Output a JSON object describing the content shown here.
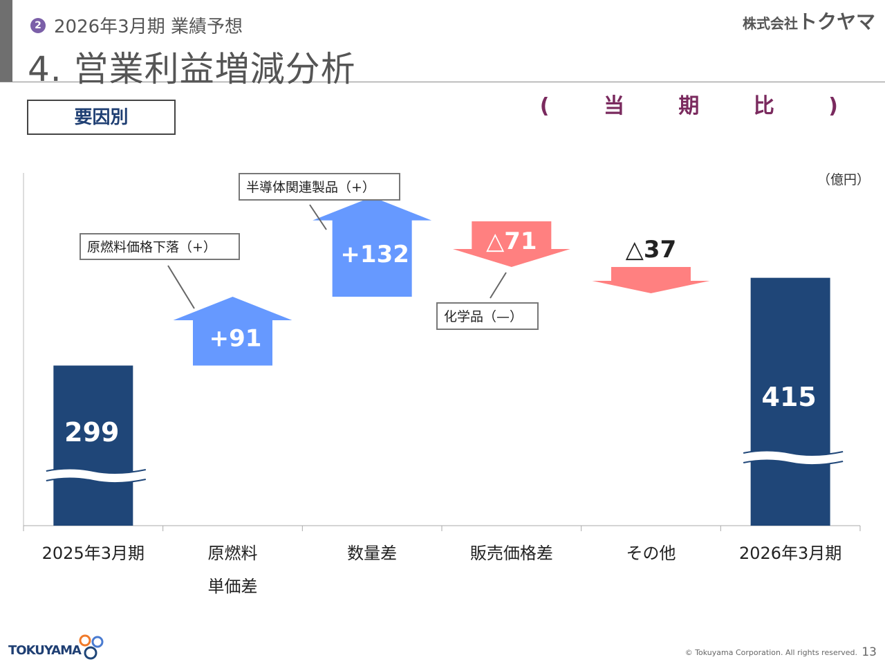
{
  "header": {
    "section_number": "2",
    "section_title": "2026年3月期 業績予想",
    "page_title": "4. 営業利益増減分析",
    "company_small": "株式会社",
    "company_big": "トクヤマ"
  },
  "factor_label": "要因別",
  "comparison_label": "( 当 期 比 )",
  "colors": {
    "bar": "#1f4678",
    "increase": "#6699ff",
    "decrease": "#ff8080",
    "title_accent": "#7a2a5e",
    "section_badge": "#7b5fa8"
  },
  "chart_data": {
    "type": "bar",
    "subtype": "waterfall",
    "unit": "（億円）",
    "categories": [
      "2025年3月期",
      "原燃料単価差",
      "数量差",
      "販売価格差",
      "その他",
      "2026年3月期"
    ],
    "category_lines": [
      [
        "2025年3月期"
      ],
      [
        "原燃料",
        "単価差"
      ],
      [
        "数量差"
      ],
      [
        "販売価格差"
      ],
      [
        "その他"
      ],
      [
        "2026年3月期"
      ]
    ],
    "values": [
      299,
      91,
      132,
      -71,
      -37,
      415
    ],
    "value_labels": [
      "299",
      "+91",
      "+132",
      "△71",
      "△37",
      "415"
    ],
    "kinds": [
      "total",
      "increase",
      "increase",
      "decrease",
      "decrease",
      "total"
    ],
    "axis_break": true,
    "callouts": [
      {
        "text": "原燃料価格下落（+）",
        "category": "原燃料単価差"
      },
      {
        "text": "半導体関連製品（+）",
        "category": "数量差"
      },
      {
        "text": "化学品（—）",
        "category": "販売価格差"
      }
    ]
  },
  "footer": {
    "logo_text": "TOKUYAMA",
    "copyright": "© Tokuyama Corporation. All rights reserved.",
    "page_number": "13"
  }
}
